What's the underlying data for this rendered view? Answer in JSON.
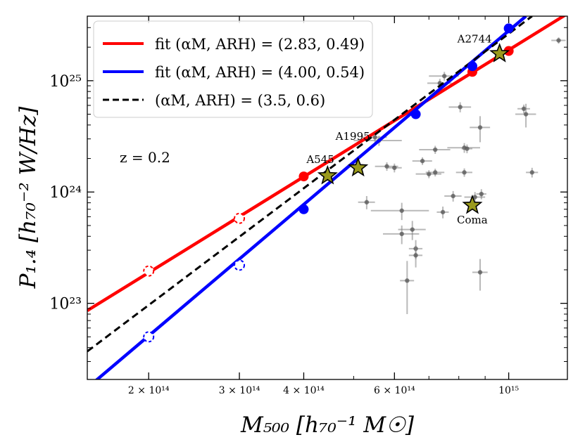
{
  "chart_data": {
    "type": "scatter",
    "xlabel": "M₅₀₀ [h₇₀⁻¹ M☉]",
    "ylabel": "P₁.₄ [h₇₀⁻² W/Hz]",
    "xscale": "log",
    "yscale": "log",
    "xlim": [
      152000000000000.0,
      1300000000000000.0
    ],
    "ylim": [
      2.07e+22,
      3.8e+25
    ],
    "x_ticks": [
      {
        "value": 200000000000000.0,
        "label": "2 × 10¹⁴"
      },
      {
        "value": 300000000000000.0,
        "label": "3 × 10¹⁴"
      },
      {
        "value": 400000000000000.0,
        "label": "4 × 10¹⁴"
      },
      {
        "value": 600000000000000.0,
        "label": "6 × 10¹⁴"
      },
      {
        "value": 1000000000000000.0,
        "label": "10¹⁵"
      }
    ],
    "y_ticks": [
      {
        "value": 1e+23,
        "label": "10²³"
      },
      {
        "value": 1e+24,
        "label": "10²⁴"
      },
      {
        "value": 1e+25,
        "label": "10²⁵"
      }
    ],
    "annotation": "z = 0.2",
    "legend_position": "top-left",
    "lines": [
      {
        "name": "fit (αM, ARH) = (2.83, 0.49)",
        "color": "#ff0000",
        "style": "solid",
        "points": [
          [
            152000000000000.0,
            8.6e+22
          ],
          [
            1300000000000000.0,
            4e+25
          ]
        ]
      },
      {
        "name": "fit (αM, ARH) = (4.00, 0.54)",
        "color": "#0000ff",
        "style": "solid",
        "points": [
          [
            152000000000000.0,
            1.74e+22
          ],
          [
            1080000000000000.0,
            3.8e+25
          ]
        ]
      },
      {
        "name": "(αM, ARH) = (3.5, 0.6)",
        "color": "#000000",
        "style": "dashed",
        "points": [
          [
            152000000000000.0,
            3.7e+22
          ],
          [
            1110000000000000.0,
            3.8e+25
          ]
        ]
      }
    ],
    "model_points": [
      {
        "series": "red",
        "color": "#ff0000",
        "filled": true,
        "points": [
          [
            400000000000000.0,
            1.38e+24
          ],
          [
            850000000000000.0,
            1.2e+25
          ],
          [
            1000000000000000.0,
            1.85e+25
          ]
        ]
      },
      {
        "series": "red",
        "color": "#ff0000",
        "filled": false,
        "points": [
          [
            200000000000000.0,
            1.95e+23
          ],
          [
            300000000000000.0,
            5.8e+23
          ]
        ]
      },
      {
        "series": "blue",
        "color": "#0000ff",
        "filled": true,
        "points": [
          [
            400000000000000.0,
            7e+23
          ],
          [
            660000000000000.0,
            5e+24
          ],
          [
            850000000000000.0,
            1.35e+25
          ],
          [
            1000000000000000.0,
            2.95e+25
          ]
        ]
      },
      {
        "series": "blue",
        "color": "#0000ff",
        "filled": false,
        "points": [
          [
            200000000000000.0,
            5e+22
          ],
          [
            300000000000000.0,
            2.2e+23
          ]
        ]
      }
    ],
    "observed_clusters": [
      {
        "x": 530000000000000.0,
        "y": 8.1e+23,
        "xerr": [
          20000000000000.0,
          20000000000000.0
        ],
        "yerr": [
          1.1e+23,
          1.1e+23
        ]
      },
      {
        "x": 550000000000000.0,
        "y": 3.1e+24,
        "xerr": [
          30000000000000.0,
          30000000000000.0
        ],
        "yerr": [
          3e+23,
          3e+23
        ]
      },
      {
        "x": 560000000000000.0,
        "y": 2.9e+24,
        "xerr": [
          60000000000000.0,
          60000000000000.0
        ],
        "yerr": [
          3e+23,
          3e+23
        ]
      },
      {
        "x": 580000000000000.0,
        "y": 1.7e+24,
        "xerr": [
          30000000000000.0,
          30000000000000.0
        ],
        "yerr": [
          1.5e+23,
          1.5e+23
        ]
      },
      {
        "x": 600000000000000.0,
        "y": 1.65e+24,
        "xerr": [
          20000000000000.0,
          20000000000000.0
        ],
        "yerr": [
          1.5e+23,
          1.5e+23
        ]
      },
      {
        "x": 620000000000000.0,
        "y": 6.8e+23,
        "xerr": [
          80000000000000.0,
          80000000000000.0
        ],
        "yerr": [
          1.2e+23,
          1.2e+23
        ]
      },
      {
        "x": 620000000000000.0,
        "y": 4.2e+23,
        "xerr": [
          50000000000000.0,
          50000000000000.0
        ],
        "yerr": [
          8e+22,
          8e+22
        ]
      },
      {
        "x": 635000000000000.0,
        "y": 1.6e+23,
        "xerr": [
          20000000000000.0,
          20000000000000.0
        ],
        "yerr": [
          8e+22,
          8e+22
        ]
      },
      {
        "x": 650000000000000.0,
        "y": 4.6e+23,
        "xerr": [
          40000000000000.0,
          40000000000000.0
        ],
        "yerr": [
          9e+22,
          9e+22
        ]
      },
      {
        "x": 660000000000000.0,
        "y": 3.1e+23,
        "xerr": [
          20000000000000.0,
          20000000000000.0
        ],
        "yerr": [
          6e+22,
          6e+22
        ]
      },
      {
        "x": 660000000000000.0,
        "y": 2.7e+23,
        "xerr": [
          20000000000000.0,
          20000000000000.0
        ],
        "yerr": [
          6e+22,
          6e+22
        ]
      },
      {
        "x": 680000000000000.0,
        "y": 1.9e+24,
        "xerr": [
          30000000000000.0,
          30000000000000.0
        ],
        "yerr": [
          1.5e+23,
          1.5e+23
        ]
      },
      {
        "x": 700000000000000.0,
        "y": 1.45e+24,
        "xerr": [
          40000000000000.0,
          40000000000000.0
        ],
        "yerr": [
          1.2e+23,
          1.2e+23
        ]
      },
      {
        "x": 720000000000000.0,
        "y": 2.4e+24,
        "xerr": [
          50000000000000.0,
          50000000000000.0
        ],
        "yerr": [
          2e+23,
          2e+23
        ]
      },
      {
        "x": 720000000000000.0,
        "y": 1.5e+24,
        "xerr": [
          30000000000000.0,
          30000000000000.0
        ],
        "yerr": [
          1.2e+23,
          1.2e+23
        ]
      },
      {
        "x": 735000000000000.0,
        "y": 9.5e+24,
        "xerr": [
          40000000000000.0,
          40000000000000.0
        ],
        "yerr": [
          9e+23,
          9e+23
        ]
      },
      {
        "x": 745000000000000.0,
        "y": 6.6e+23,
        "xerr": [
          20000000000000.0,
          20000000000000.0
        ],
        "yerr": [
          8e+22,
          8e+22
        ]
      },
      {
        "x": 750000000000000.0,
        "y": 1.1e+25,
        "xerr": [
          50000000000000.0,
          50000000000000.0
        ],
        "yerr": [
          1e+24,
          1e+24
        ]
      },
      {
        "x": 780000000000000.0,
        "y": 9.2e+23,
        "xerr": [
          30000000000000.0,
          30000000000000.0
        ],
        "yerr": [
          1e+23,
          1e+23
        ]
      },
      {
        "x": 805000000000000.0,
        "y": 5.8e+24,
        "xerr": [
          40000000000000.0,
          40000000000000.0
        ],
        "yerr": [
          6e+23,
          6e+23
        ]
      },
      {
        "x": 820000000000000.0,
        "y": 2.5e+24,
        "xerr": [
          60000000000000.0,
          60000000000000.0
        ],
        "yerr": [
          2.5e+23,
          2.5e+23
        ]
      },
      {
        "x": 820000000000000.0,
        "y": 1.5e+24,
        "xerr": [
          30000000000000.0,
          30000000000000.0
        ],
        "yerr": [
          1.3e+23,
          1.3e+23
        ]
      },
      {
        "x": 830000000000000.0,
        "y": 2.45e+24,
        "xerr": [
          20000000000000.0,
          20000000000000.0
        ],
        "yerr": [
          2.2e+23,
          2.2e+23
        ]
      },
      {
        "x": 860000000000000.0,
        "y": 9e+23,
        "xerr": [
          40000000000000.0,
          40000000000000.0
        ],
        "yerr": [
          1e+23,
          1e+23
        ]
      },
      {
        "x": 880000000000000.0,
        "y": 3.8e+24,
        "xerr": [
          40000000000000.0,
          40000000000000.0
        ],
        "yerr": [
          1e+24,
          1e+24
        ]
      },
      {
        "x": 880000000000000.0,
        "y": 1.9e+23,
        "xerr": [
          30000000000000.0,
          30000000000000.0
        ],
        "yerr": [
          6e+22,
          6e+22
        ]
      },
      {
        "x": 885000000000000.0,
        "y": 9.6e+23,
        "xerr": [
          20000000000000.0,
          20000000000000.0
        ],
        "yerr": [
          1e+23,
          1e+23
        ]
      },
      {
        "x": 1070000000000000.0,
        "y": 5.6e+24,
        "xerr": [
          30000000000000.0,
          30000000000000.0
        ],
        "yerr": [
          5e+23,
          5e+23
        ]
      },
      {
        "x": 1080000000000000.0,
        "y": 5e+24,
        "xerr": [
          50000000000000.0,
          50000000000000.0
        ],
        "yerr": [
          1.2e+24,
          1.2e+24
        ]
      },
      {
        "x": 1110000000000000.0,
        "y": 1.5e+24,
        "xerr": [
          30000000000000.0,
          30000000000000.0
        ],
        "yerr": [
          1.5e+23,
          1.5e+23
        ]
      },
      {
        "x": 1250000000000000.0,
        "y": 2.3e+25,
        "xerr": [
          40000000000000.0,
          40000000000000.0
        ],
        "yerr": [
          1.5e+24,
          1.5e+24
        ]
      }
    ],
    "named_clusters": [
      {
        "name": "A545",
        "x": 445000000000000.0,
        "y": 1.4e+24
      },
      {
        "name": "A1995",
        "x": 510000000000000.0,
        "y": 1.65e+24
      },
      {
        "name": "A2744",
        "x": 960000000000000.0,
        "y": 1.75e+25
      },
      {
        "name": "Coma",
        "x": 850000000000000.0,
        "y": 7.6e+23
      }
    ]
  }
}
